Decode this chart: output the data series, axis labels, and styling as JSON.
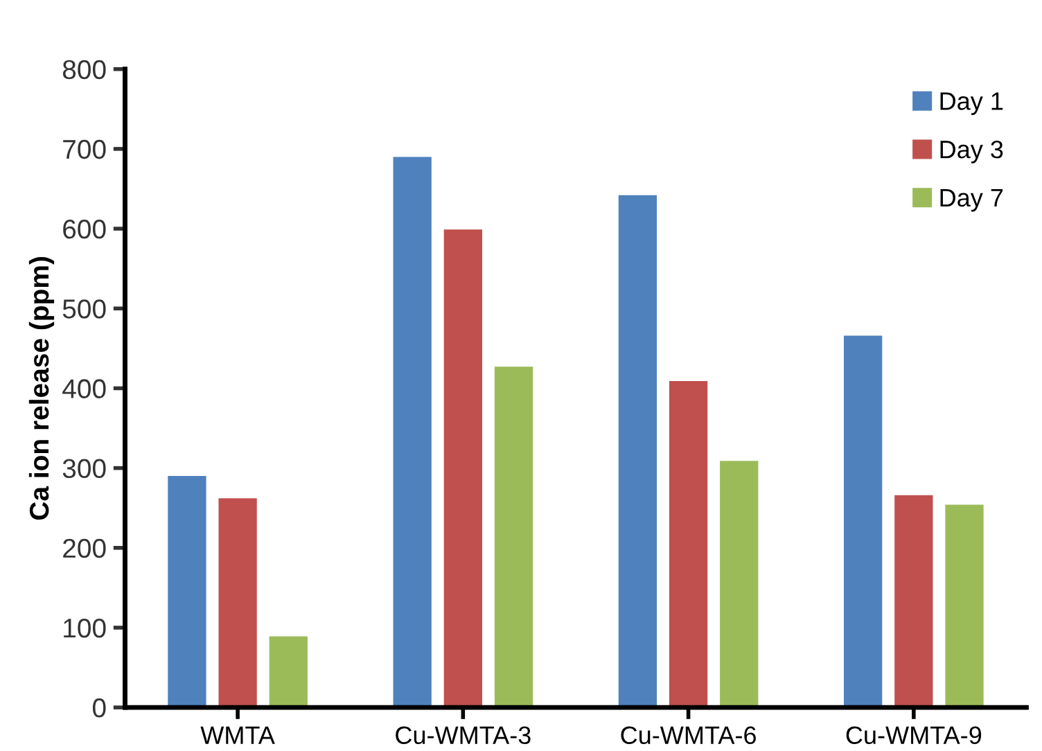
{
  "chart_data": {
    "type": "bar",
    "ylabel": "Ca ion release (ppm)",
    "categories": [
      "WMTA",
      "Cu-WMTA-3",
      "Cu-WMTA-6",
      "Cu-WMTA-9"
    ],
    "series": [
      {
        "name": "Day 1",
        "color": "#4f81bd",
        "values": [
          290,
          690,
          642,
          466
        ]
      },
      {
        "name": "Day 3",
        "color": "#c0504d",
        "values": [
          262,
          599,
          409,
          266
        ]
      },
      {
        "name": "Day 7",
        "color": "#9bbb59",
        "values": [
          89,
          427,
          309,
          254
        ]
      }
    ],
    "ylim": [
      0,
      800
    ],
    "yticks": [
      0,
      100,
      200,
      300,
      400,
      500,
      600,
      700,
      800
    ],
    "grid": false,
    "legend": "top right"
  }
}
